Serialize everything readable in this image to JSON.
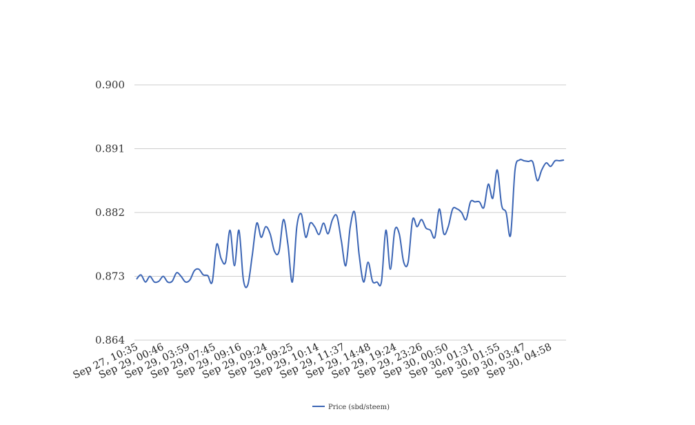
{
  "chart_data": {
    "type": "line",
    "title": "",
    "xlabel": "",
    "ylabel": "",
    "ylim": [
      0.864,
      0.9
    ],
    "yticks": [
      "0.900",
      "0.891",
      "0.882",
      "0.873",
      "0.864"
    ],
    "ytick_values": [
      0.9,
      0.891,
      0.882,
      0.873,
      0.864
    ],
    "xtick_labels": [
      "Sep 27, 10:35",
      "Sep 29, 00:46",
      "Sep 29, 03:59",
      "Sep 29, 07:45",
      "Sep 29, 09:16",
      "Sep 29, 09:24",
      "Sep 29, 09:25",
      "Sep 29, 10:14",
      "Sep 29, 11:37",
      "Sep 29, 14:48",
      "Sep 29, 19:24",
      "Sep 29, 23:26",
      "Sep 30, 00:50",
      "Sep 30, 01:31",
      "Sep 30, 01:55",
      "Sep 30, 03:47",
      "Sep 30, 04:58"
    ],
    "grid": true,
    "legend_position": "bottom",
    "color": "#3a64b4",
    "series": [
      {
        "name": "Price (sbd/steem)",
        "values": [
          0.8726,
          0.8732,
          0.8722,
          0.873,
          0.8722,
          0.8723,
          0.873,
          0.8722,
          0.8723,
          0.8735,
          0.873,
          0.8722,
          0.8725,
          0.8738,
          0.874,
          0.8732,
          0.8731,
          0.8722,
          0.8775,
          0.8755,
          0.875,
          0.8795,
          0.8745,
          0.8795,
          0.8725,
          0.8718,
          0.876,
          0.8805,
          0.8785,
          0.88,
          0.879,
          0.8765,
          0.8765,
          0.881,
          0.8775,
          0.8722,
          0.88,
          0.8818,
          0.8785,
          0.8805,
          0.88,
          0.8789,
          0.8805,
          0.879,
          0.881,
          0.8815,
          0.878,
          0.8745,
          0.88,
          0.882,
          0.876,
          0.8722,
          0.875,
          0.8723,
          0.8722,
          0.8722,
          0.8795,
          0.874,
          0.8795,
          0.879,
          0.875,
          0.875,
          0.881,
          0.88,
          0.881,
          0.8798,
          0.8795,
          0.8785,
          0.8825,
          0.879,
          0.88,
          0.8825,
          0.8825,
          0.882,
          0.881,
          0.8835,
          0.8835,
          0.8835,
          0.8827,
          0.886,
          0.884,
          0.888,
          0.883,
          0.882,
          0.8788,
          0.888,
          0.8894,
          0.8893,
          0.8892,
          0.8891,
          0.8865,
          0.888,
          0.889,
          0.8885,
          0.8893,
          0.8893,
          0.8894
        ]
      }
    ]
  }
}
